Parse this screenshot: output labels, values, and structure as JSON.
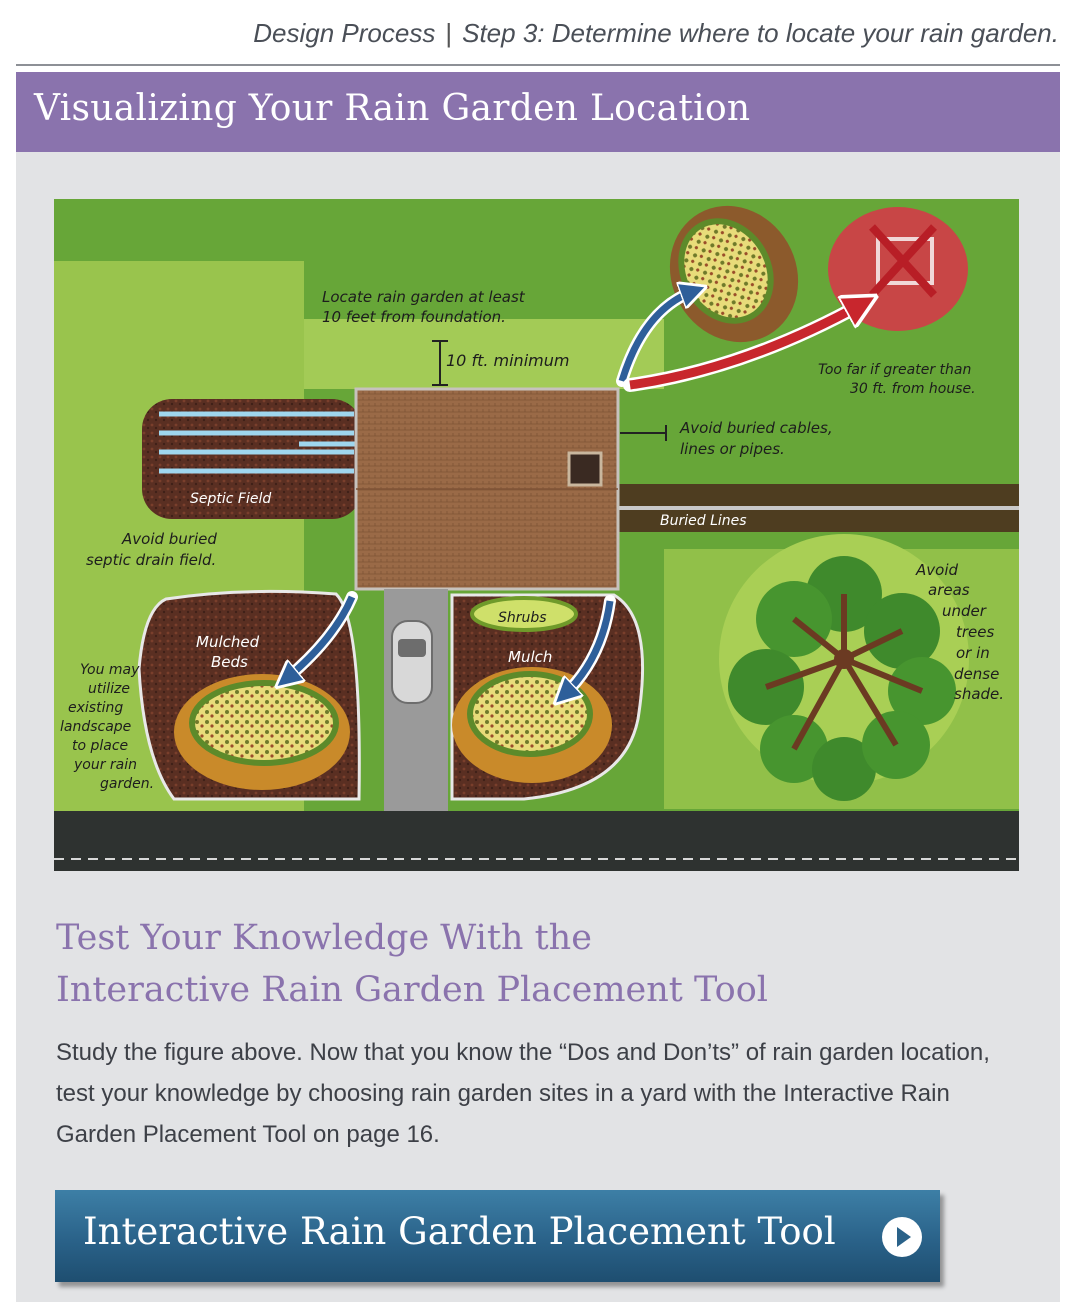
{
  "breadcrumb": {
    "section": "Design Process",
    "step": "Step 3: Determine where to locate your rain garden."
  },
  "header": {
    "title": "Visualizing Your Rain Garden Location"
  },
  "figure": {
    "labels": {
      "foundation": [
        "Locate rain garden at least",
        "10 feet from foundation."
      ],
      "minimum": "10 ft. minimum",
      "too_far": [
        "Too far if greater than",
        "30 ft. from house."
      ],
      "cables": [
        "Avoid buried cables,",
        "lines or pipes."
      ],
      "septic_field": "Septic Field",
      "septic_avoid": [
        "Avoid buried",
        "septic drain field."
      ],
      "buried_lines": "Buried Lines",
      "trees": [
        "Avoid",
        "areas",
        "under",
        "trees",
        "or in",
        "dense",
        "shade."
      ],
      "mulched_beds": [
        "Mulched",
        "Beds"
      ],
      "shrubs": "Shrubs",
      "mulch": "Mulch",
      "landscape": [
        "You may",
        "utilize",
        "existing",
        "landscape",
        "to place",
        "your rain",
        "garden."
      ]
    }
  },
  "section": {
    "title_line1": "Test Your Knowledge With the",
    "title_line2": "Interactive Rain Garden Placement Tool",
    "body": "Study the figure above. Now that you know the “Dos and Don’ts” of rain garden location, test your knowledge by choosing rain garden sites in a yard with the Interactive Rain Garden Placement Tool on page 16."
  },
  "cta": {
    "label": "Interactive Rain Garden Placement Tool",
    "icon": "play-circle-icon"
  },
  "colors": {
    "accent_purple": "#8a73ad",
    "button_blue": "#2a6289",
    "panel_gray": "#e2e3e5",
    "lawn_green": "#6fae3c",
    "arrow_blue": "#2e5f9a",
    "arrow_red": "#c8262d"
  }
}
